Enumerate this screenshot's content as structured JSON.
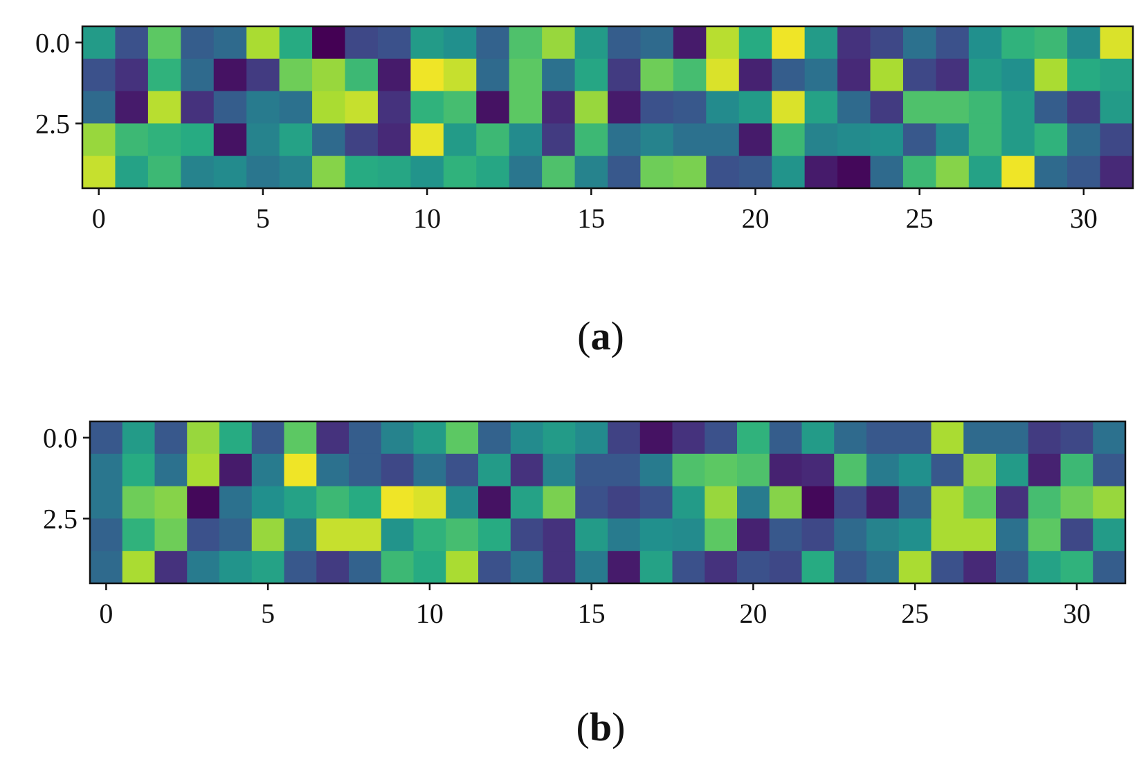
{
  "chart_data": [
    {
      "type": "heatmap",
      "panel_label": "a",
      "colormap": "viridis",
      "xlim": [
        -0.5,
        31.5
      ],
      "ylim": [
        4.5,
        -0.5
      ],
      "x_ticks": [
        "0",
        "5",
        "10",
        "15",
        "20",
        "25",
        "30"
      ],
      "y_ticks": [
        "0.0",
        "2.5"
      ],
      "values": [
        [
          0.55,
          0.25,
          0.75,
          0.3,
          0.35,
          0.88,
          0.62,
          0.0,
          0.22,
          0.25,
          0.55,
          0.5,
          0.32,
          0.72,
          0.85,
          0.55,
          0.3,
          0.35,
          0.08,
          0.9,
          0.62,
          0.98,
          0.55,
          0.15,
          0.22,
          0.38,
          0.25,
          0.5,
          0.65,
          0.68,
          0.48,
          0.95
        ],
        [
          0.25,
          0.15,
          0.65,
          0.35,
          0.05,
          0.18,
          0.78,
          0.85,
          0.68,
          0.08,
          0.98,
          0.92,
          0.35,
          0.75,
          0.38,
          0.6,
          0.18,
          0.78,
          0.7,
          0.95,
          0.1,
          0.3,
          0.38,
          0.12,
          0.88,
          0.22,
          0.15,
          0.55,
          0.5,
          0.88,
          0.62,
          0.58
        ],
        [
          0.35,
          0.08,
          0.9,
          0.15,
          0.3,
          0.42,
          0.38,
          0.88,
          0.92,
          0.15,
          0.65,
          0.7,
          0.05,
          0.75,
          0.12,
          0.85,
          0.08,
          0.25,
          0.28,
          0.48,
          0.55,
          0.95,
          0.58,
          0.35,
          0.18,
          0.72,
          0.72,
          0.68,
          0.55,
          0.3,
          0.18,
          0.55
        ],
        [
          0.85,
          0.68,
          0.65,
          0.62,
          0.05,
          0.45,
          0.58,
          0.35,
          0.2,
          0.12,
          0.97,
          0.55,
          0.68,
          0.48,
          0.18,
          0.68,
          0.38,
          0.45,
          0.38,
          0.38,
          0.08,
          0.68,
          0.45,
          0.48,
          0.5,
          0.28,
          0.48,
          0.68,
          0.55,
          0.65,
          0.35,
          0.22
        ],
        [
          0.92,
          0.58,
          0.68,
          0.45,
          0.48,
          0.4,
          0.45,
          0.82,
          0.62,
          0.6,
          0.52,
          0.65,
          0.6,
          0.4,
          0.72,
          0.45,
          0.28,
          0.78,
          0.8,
          0.25,
          0.28,
          0.52,
          0.08,
          0.02,
          0.35,
          0.68,
          0.82,
          0.58,
          0.98,
          0.35,
          0.28,
          0.12
        ]
      ]
    },
    {
      "type": "heatmap",
      "panel_label": "b",
      "colormap": "viridis",
      "xlim": [
        -0.5,
        31.5
      ],
      "ylim": [
        4.5,
        -0.5
      ],
      "x_ticks": [
        "0",
        "5",
        "10",
        "15",
        "20",
        "25",
        "30"
      ],
      "y_ticks": [
        "0.0",
        "2.5"
      ],
      "values": [
        [
          0.28,
          0.55,
          0.28,
          0.85,
          0.62,
          0.28,
          0.75,
          0.15,
          0.3,
          0.45,
          0.55,
          0.75,
          0.32,
          0.48,
          0.55,
          0.48,
          0.2,
          0.05,
          0.15,
          0.25,
          0.65,
          0.3,
          0.55,
          0.35,
          0.28,
          0.28,
          0.88,
          0.35,
          0.35,
          0.18,
          0.22,
          0.38
        ],
        [
          0.4,
          0.62,
          0.38,
          0.88,
          0.08,
          0.42,
          0.98,
          0.38,
          0.3,
          0.22,
          0.38,
          0.25,
          0.55,
          0.15,
          0.45,
          0.28,
          0.28,
          0.42,
          0.72,
          0.75,
          0.72,
          0.1,
          0.12,
          0.72,
          0.42,
          0.5,
          0.28,
          0.85,
          0.55,
          0.1,
          0.68,
          0.28
        ],
        [
          0.4,
          0.78,
          0.82,
          0.02,
          0.38,
          0.5,
          0.58,
          0.68,
          0.62,
          0.98,
          0.95,
          0.48,
          0.05,
          0.58,
          0.8,
          0.25,
          0.2,
          0.25,
          0.55,
          0.85,
          0.42,
          0.82,
          0.02,
          0.22,
          0.08,
          0.32,
          0.88,
          0.75,
          0.15,
          0.7,
          0.78,
          0.85
        ],
        [
          0.32,
          0.65,
          0.78,
          0.25,
          0.32,
          0.85,
          0.42,
          0.92,
          0.92,
          0.52,
          0.65,
          0.7,
          0.62,
          0.22,
          0.15,
          0.55,
          0.42,
          0.5,
          0.48,
          0.75,
          0.1,
          0.28,
          0.22,
          0.35,
          0.45,
          0.5,
          0.88,
          0.88,
          0.38,
          0.75,
          0.22,
          0.55
        ],
        [
          0.35,
          0.88,
          0.15,
          0.42,
          0.52,
          0.58,
          0.28,
          0.18,
          0.32,
          0.68,
          0.62,
          0.88,
          0.25,
          0.4,
          0.15,
          0.42,
          0.08,
          0.58,
          0.25,
          0.15,
          0.25,
          0.22,
          0.62,
          0.28,
          0.38,
          0.88,
          0.25,
          0.12,
          0.3,
          0.58,
          0.65,
          0.3
        ]
      ]
    }
  ]
}
